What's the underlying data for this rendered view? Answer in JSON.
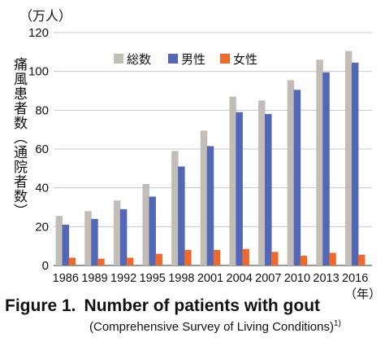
{
  "chart_data": {
    "type": "bar",
    "categories": [
      "1986",
      "1989",
      "1992",
      "1995",
      "1998",
      "2001",
      "2004",
      "2007",
      "2010",
      "2013",
      "2016"
    ],
    "series": [
      {
        "name": "総数",
        "color": "#c3bdb8",
        "values": [
          25.5,
          28,
          33.5,
          42,
          59,
          69.5,
          87,
          85,
          95.5,
          106,
          110.5
        ]
      },
      {
        "name": "男性",
        "color": "#5267b6",
        "values": [
          21,
          24,
          29,
          35.5,
          51,
          61.5,
          79,
          78,
          90.5,
          99.5,
          104.5
        ]
      },
      {
        "name": "女性",
        "color": "#ee6a2c",
        "values": [
          4,
          3.5,
          4,
          6,
          8,
          8,
          8.5,
          7,
          5,
          6.5,
          5.5
        ]
      }
    ],
    "ylim": [
      0,
      120
    ],
    "yticks": [
      0,
      20,
      40,
      60,
      80,
      100,
      120
    ],
    "ylabel": "痛風患者数（通院者数）",
    "y_unit": "（万人）",
    "x_unit": "（年）",
    "legend_position": "top-center",
    "grid": true
  },
  "caption": {
    "figure_number": "Figure 1.",
    "title": "Number of patients with gout",
    "subtitle": "(Comprehensive Survey of Living Conditions)",
    "ref": "1)"
  }
}
